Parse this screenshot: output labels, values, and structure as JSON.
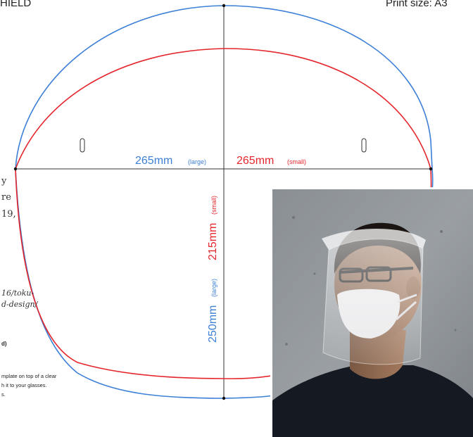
{
  "header": {
    "title_fragment": "HIELD",
    "print_size": "Print size: A3"
  },
  "dimensions": {
    "width_large": "265mm",
    "width_large_note": "(large)",
    "width_small": "265mm",
    "width_small_note": "(small)",
    "height_small": "215mm",
    "height_small_note": "(small)",
    "height_large": "250mm",
    "height_large_note": "(large)"
  },
  "side_text": {
    "line1": "y",
    "line2": "re",
    "line3": "19,",
    "url1": "16/toku-",
    "url2": "d-design/",
    "label": "d)",
    "note1": "mplate on top of a clear",
    "note2": "h it to your glasses.",
    "note3": "s."
  },
  "colors": {
    "large_outline": "#3b7fd6",
    "small_outline": "#e4262c",
    "guide_lines": "#333333"
  },
  "photo": {
    "subject": "person-wearing-face-shield"
  }
}
